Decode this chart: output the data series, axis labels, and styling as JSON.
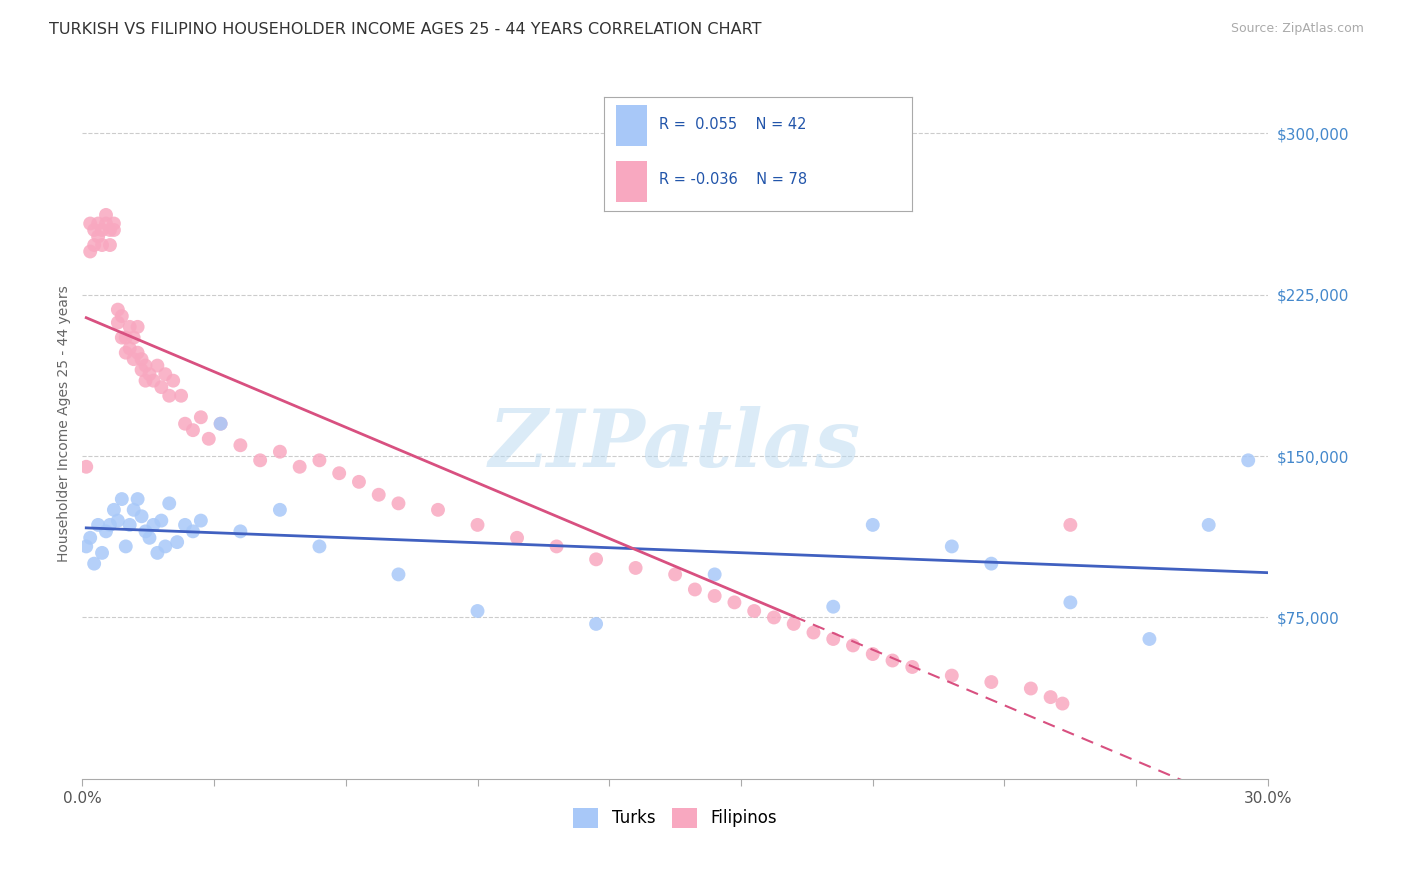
{
  "title": "TURKISH VS FILIPINO HOUSEHOLDER INCOME AGES 25 - 44 YEARS CORRELATION CHART",
  "source": "Source: ZipAtlas.com",
  "ylabel": "Householder Income Ages 25 - 44 years",
  "xlim": [
    0.0,
    0.3
  ],
  "ylim": [
    0,
    330000
  ],
  "yticks": [
    75000,
    150000,
    225000,
    300000
  ],
  "watermark": "ZIPatlas",
  "turks_color": "#a8c8f8",
  "filipinos_color": "#f8a8c0",
  "turks_line_color": "#4060c0",
  "filipinos_line_color": "#d85080",
  "background_color": "#ffffff",
  "title_fontsize": 11.5,
  "tick_label_color": "#4488cc",
  "turks_x": [
    0.001,
    0.002,
    0.003,
    0.004,
    0.005,
    0.006,
    0.007,
    0.008,
    0.009,
    0.01,
    0.011,
    0.012,
    0.013,
    0.014,
    0.015,
    0.016,
    0.017,
    0.018,
    0.019,
    0.02,
    0.021,
    0.022,
    0.024,
    0.026,
    0.028,
    0.03,
    0.035,
    0.04,
    0.05,
    0.06,
    0.08,
    0.1,
    0.13,
    0.16,
    0.19,
    0.2,
    0.22,
    0.23,
    0.25,
    0.27,
    0.285,
    0.295
  ],
  "turks_y": [
    108000,
    112000,
    100000,
    118000,
    105000,
    115000,
    118000,
    125000,
    120000,
    130000,
    108000,
    118000,
    125000,
    130000,
    122000,
    115000,
    112000,
    118000,
    105000,
    120000,
    108000,
    128000,
    110000,
    118000,
    115000,
    120000,
    165000,
    115000,
    125000,
    108000,
    95000,
    78000,
    72000,
    95000,
    80000,
    118000,
    108000,
    100000,
    82000,
    65000,
    118000,
    148000
  ],
  "filipinos_x": [
    0.001,
    0.002,
    0.002,
    0.003,
    0.003,
    0.004,
    0.004,
    0.005,
    0.005,
    0.006,
    0.006,
    0.007,
    0.007,
    0.008,
    0.008,
    0.009,
    0.009,
    0.01,
    0.01,
    0.011,
    0.011,
    0.012,
    0.012,
    0.013,
    0.013,
    0.014,
    0.014,
    0.015,
    0.015,
    0.016,
    0.016,
    0.017,
    0.018,
    0.019,
    0.02,
    0.021,
    0.022,
    0.023,
    0.025,
    0.026,
    0.028,
    0.03,
    0.032,
    0.035,
    0.04,
    0.045,
    0.05,
    0.055,
    0.06,
    0.065,
    0.07,
    0.075,
    0.08,
    0.09,
    0.1,
    0.11,
    0.12,
    0.13,
    0.14,
    0.15,
    0.155,
    0.16,
    0.165,
    0.17,
    0.175,
    0.18,
    0.185,
    0.19,
    0.195,
    0.2,
    0.205,
    0.21,
    0.22,
    0.23,
    0.24,
    0.245,
    0.248,
    0.25
  ],
  "filipinos_y": [
    145000,
    245000,
    258000,
    248000,
    255000,
    252000,
    258000,
    255000,
    248000,
    258000,
    262000,
    255000,
    248000,
    258000,
    255000,
    212000,
    218000,
    205000,
    215000,
    198000,
    205000,
    200000,
    210000,
    195000,
    205000,
    198000,
    210000,
    190000,
    195000,
    185000,
    192000,
    188000,
    185000,
    192000,
    182000,
    188000,
    178000,
    185000,
    178000,
    165000,
    162000,
    168000,
    158000,
    165000,
    155000,
    148000,
    152000,
    145000,
    148000,
    142000,
    138000,
    132000,
    128000,
    125000,
    118000,
    112000,
    108000,
    102000,
    98000,
    95000,
    88000,
    85000,
    82000,
    78000,
    75000,
    72000,
    68000,
    65000,
    62000,
    58000,
    55000,
    52000,
    48000,
    45000,
    42000,
    38000,
    35000,
    118000
  ]
}
